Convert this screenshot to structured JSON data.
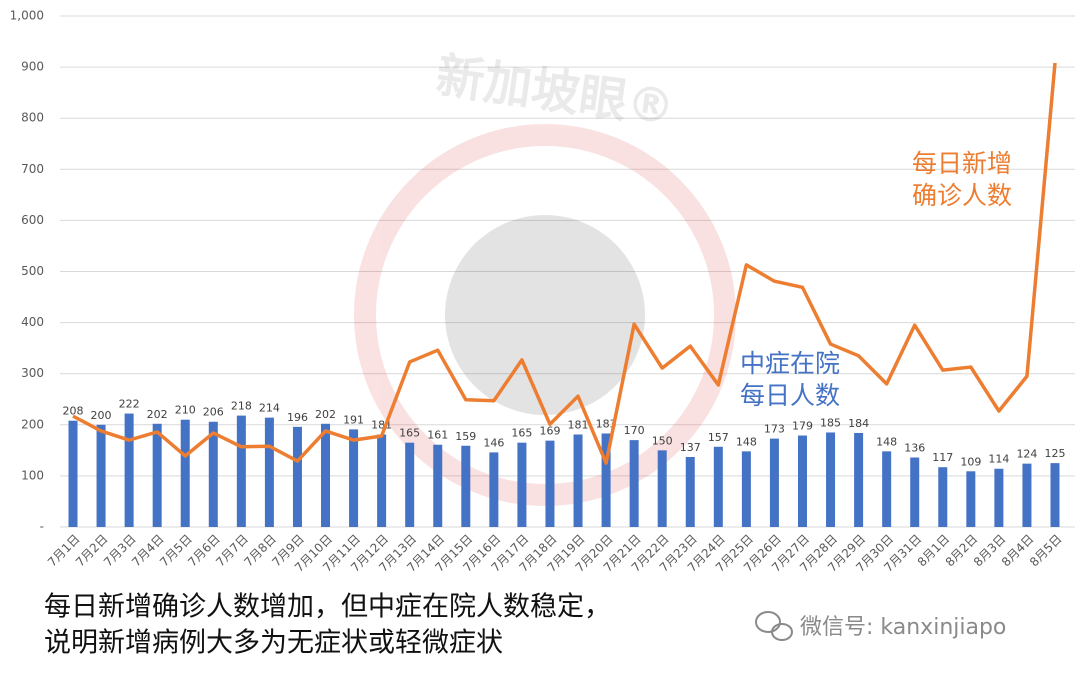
{
  "chart_data": {
    "type": "bar_line",
    "categories": [
      "7月1日",
      "7月2日",
      "7月3日",
      "7月4日",
      "7月5日",
      "7月6日",
      "7月7日",
      "7月8日",
      "7月9日",
      "7月10日",
      "7月11日",
      "7月12日",
      "7月13日",
      "7月14日",
      "7月15日",
      "7月16日",
      "7月17日",
      "7月18日",
      "7月19日",
      "7月20日",
      "7月21日",
      "7月22日",
      "7月23日",
      "7月24日",
      "7月25日",
      "7月26日",
      "7月27日",
      "7月28日",
      "7月29日",
      "7月30日",
      "7月31日",
      "8月1日",
      "8月2日",
      "8月3日",
      "8月4日",
      "8月5日"
    ],
    "series": [
      {
        "label_lines": [
          "中症在院",
          "每日人数"
        ],
        "kind": "bar",
        "color": "#4472c4",
        "values": [
          208,
          200,
          222,
          202,
          210,
          206,
          218,
          214,
          196,
          202,
          191,
          181,
          165,
          161,
          159,
          146,
          165,
          169,
          181,
          183,
          170,
          150,
          137,
          157,
          148,
          173,
          179,
          185,
          184,
          148,
          136,
          117,
          109,
          114,
          124,
          125
        ]
      },
      {
        "label_lines": [
          "每日新增",
          "确诊人数"
        ],
        "kind": "line",
        "color": "#ed7d31",
        "values": [
          217,
          188,
          170,
          186,
          139,
          184,
          157,
          158,
          129,
          188,
          170,
          178,
          323,
          346,
          249,
          247,
          327,
          201,
          256,
          125,
          397,
          311,
          354,
          278,
          513,
          481,
          469,
          358,
          335,
          280,
          395,
          307,
          313,
          227,
          295,
          908
        ]
      }
    ],
    "ylim": [
      0,
      1000
    ],
    "yticks": [
      {
        "value": 0,
        "label": "-"
      },
      100,
      200,
      300,
      400,
      500,
      600,
      700,
      800,
      900,
      {
        "value": 1000,
        "label": "1,000"
      }
    ],
    "grid": true,
    "caption": [
      "每日新增确诊人数增加，但中症在院人数稳定，",
      "说明新增病例大多为无症状或轻微症状"
    ],
    "watermark": "新加坡眼®",
    "source": "微信号: kanxinjiapo"
  }
}
